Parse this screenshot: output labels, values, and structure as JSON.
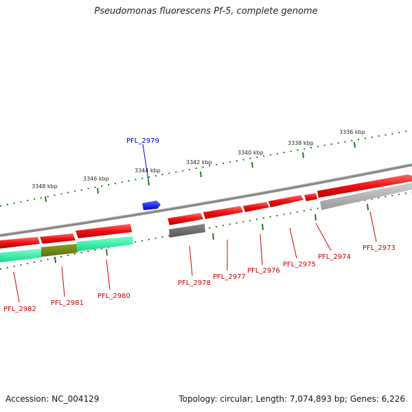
{
  "title": "Pseudomonas fluorescens Pf-5, complete genome",
  "footer": {
    "accession": "Accession: NC_004129",
    "summary": "Topology: circular; Length: 7,074,893 bp; Genes: 6,226"
  },
  "axis_labels": [
    {
      "id": "kbp-3336",
      "text": "3336 kbp"
    },
    {
      "id": "kbp-3338",
      "text": "3338 kbp"
    },
    {
      "id": "kbp-3340",
      "text": "3340 kbp"
    },
    {
      "id": "kbp-3342",
      "text": "3342 kbp"
    },
    {
      "id": "kbp-3344",
      "text": "3344 kbp"
    },
    {
      "id": "kbp-3346",
      "text": "3346 kbp"
    },
    {
      "id": "kbp-3348",
      "text": "3348 kbp"
    }
  ],
  "gene_labels": [
    {
      "id": "PFL_2979",
      "text": "PFL_2979",
      "color": "#0000cc"
    },
    {
      "id": "PFL_2973",
      "text": "PFL_2973",
      "color": "#cc0000"
    },
    {
      "id": "PFL_2974",
      "text": "PFL_2974",
      "color": "#cc0000"
    },
    {
      "id": "PFL_2975",
      "text": "PFL_2975",
      "color": "#cc0000"
    },
    {
      "id": "PFL_2976",
      "text": "PFL_2976",
      "color": "#cc0000"
    },
    {
      "id": "PFL_2977",
      "text": "PFL_2977",
      "color": "#cc0000"
    },
    {
      "id": "PFL_2978",
      "text": "PFL_2978",
      "color": "#cc0000"
    },
    {
      "id": "PFL_2980",
      "text": "PFL_2980",
      "color": "#cc0000"
    },
    {
      "id": "PFL_2981",
      "text": "PFL_2981",
      "color": "#cc0000"
    },
    {
      "id": "PFL_2982",
      "text": "PFL_2982",
      "color": "#cc0000"
    }
  ],
  "colors": {
    "backbone": "#8a8a8a",
    "tick": "#1a7a1a",
    "cds_forward": "#ee1111",
    "cds_reverse": "#ee1111",
    "rna_gray": "#b0b0b0",
    "dark_gray": "#666666",
    "teal": "#22ee99",
    "olive": "#6b8a1a",
    "highlight": "#0000ee"
  }
}
